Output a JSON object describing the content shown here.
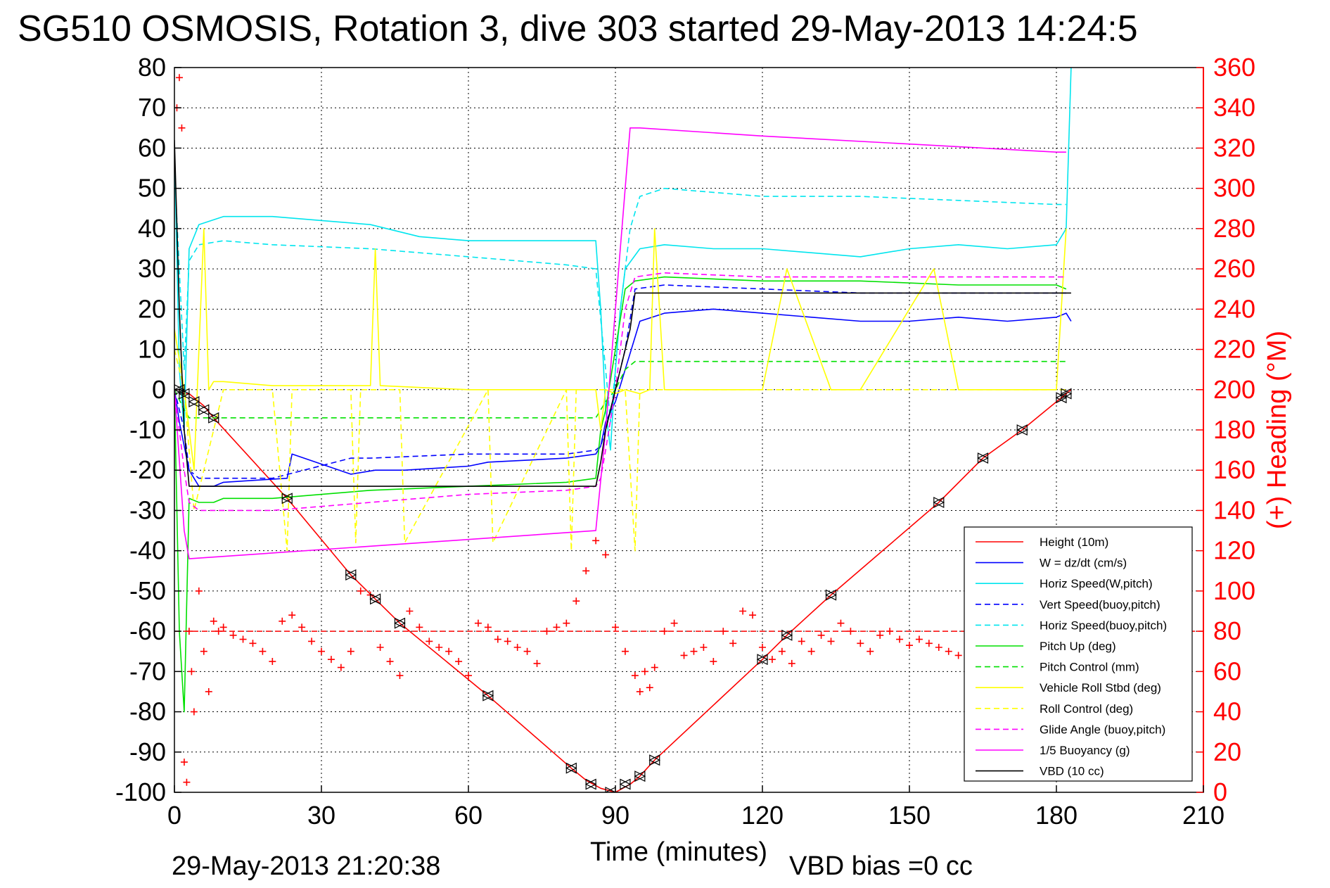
{
  "chart_data": {
    "type": "line",
    "title": "SG510 OSMOSIS, Rotation 3, dive 303 started 29-May-2013 14:24:5",
    "xlabel": "Time (minutes)",
    "ylabel_right": "(+) Heading (°M)",
    "xlim": [
      0,
      210
    ],
    "ylim": [
      -100,
      80
    ],
    "ylim_right": [
      0,
      360
    ],
    "x_ticks": [
      0,
      30,
      60,
      90,
      120,
      150,
      180,
      210
    ],
    "x_tick_labels": [
      "0",
      "30",
      "60",
      "90",
      "120",
      "150",
      "180",
      "210"
    ],
    "y_ticks": [
      80,
      70,
      60,
      50,
      40,
      30,
      20,
      10,
      0,
      -10,
      -20,
      -30,
      -40,
      -50,
      -60,
      -70,
      -80,
      -90,
      -100
    ],
    "y_tick_labels": [
      "80",
      "70",
      "60",
      "50",
      "40",
      "30",
      "20",
      "10",
      "0",
      "-10",
      "-20",
      "-30",
      "-40",
      "-50",
      "-60",
      "-70",
      "-80",
      "-90",
      "-100"
    ],
    "y_right_ticks": [
      360,
      340,
      320,
      300,
      280,
      260,
      240,
      220,
      200,
      180,
      160,
      140,
      120,
      100,
      80,
      60,
      40,
      20,
      0
    ],
    "y_right_tick_labels": [
      "360",
      "340",
      "320",
      "300",
      "280",
      "260",
      "240",
      "220",
      "200",
      "180",
      "160",
      "140",
      "120",
      "100",
      "80",
      "60",
      "40",
      "20",
      "0"
    ],
    "grid": true,
    "legend_position": "bottom-right",
    "footer_left": "29-May-2013 21:20:38",
    "footer_right": "VBD bias =0 cc",
    "series": [
      {
        "name": "Height (10m)",
        "color": "#ff0000",
        "style": "solid",
        "x": [
          0,
          1,
          2,
          3,
          4,
          6,
          8,
          23,
          36,
          41,
          46,
          64,
          81,
          84,
          87,
          90,
          93,
          95,
          98,
          120,
          125,
          134,
          156,
          165,
          173,
          181,
          182,
          183
        ],
        "y": [
          0,
          0,
          -1,
          -1,
          -2,
          -4,
          -7,
          -27,
          -46,
          -52,
          -58,
          -76,
          -94,
          -97,
          -99,
          -100,
          -98,
          -96,
          -92,
          -67,
          -61,
          -51,
          -28,
          -17,
          -10,
          -2,
          -1,
          0
        ]
      },
      {
        "name": "W = dz/dt (cm/s)",
        "color": "#0000ff",
        "style": "solid",
        "x": [
          0,
          1,
          2,
          3,
          5,
          8,
          10,
          23,
          24,
          36,
          41,
          47,
          60,
          64,
          80,
          86,
          87,
          88,
          90,
          92,
          95,
          100,
          110,
          120,
          130,
          140,
          150,
          160,
          170,
          180,
          182,
          183
        ],
        "y": [
          0,
          -8,
          -14,
          -20,
          -24,
          -24,
          -23,
          -22,
          -16,
          -21,
          -20,
          -20,
          -19,
          -18,
          -17,
          -16,
          -14,
          -8,
          -3,
          5,
          17,
          19,
          20,
          19,
          18,
          17,
          17,
          18,
          17,
          18,
          19,
          17
        ]
      },
      {
        "name": "Horiz Speed(W,pitch)",
        "color": "#00e5ee",
        "style": "solid",
        "x": [
          0,
          1,
          2,
          3,
          5,
          10,
          20,
          30,
          40,
          50,
          60,
          70,
          80,
          86,
          87,
          88,
          89,
          90,
          91,
          92,
          95,
          100,
          110,
          120,
          130,
          140,
          150,
          160,
          170,
          180,
          182,
          183
        ],
        "y": [
          60,
          5,
          -10,
          35,
          41,
          43,
          43,
          42,
          41,
          38,
          37,
          37,
          37,
          37,
          20,
          -5,
          -15,
          5,
          20,
          30,
          35,
          36,
          35,
          35,
          34,
          33,
          35,
          36,
          35,
          36,
          40,
          80
        ]
      },
      {
        "name": "Vert Speed(buoy,pitch)",
        "color": "#0000ff",
        "style": "dashed",
        "x": [
          0,
          2,
          3,
          5,
          10,
          20,
          36,
          40,
          60,
          80,
          86,
          87,
          88,
          90,
          92,
          94,
          100,
          120,
          140,
          160,
          180,
          182
        ],
        "y": [
          0,
          -10,
          -20,
          -22,
          -22,
          -22,
          -17,
          -17,
          -16,
          -16,
          -15,
          -14,
          -10,
          0,
          10,
          25,
          26,
          25,
          24,
          24,
          24,
          24
        ]
      },
      {
        "name": "Horiz Speed(buoy,pitch)",
        "color": "#00e5ee",
        "style": "dashed",
        "x": [
          0,
          2,
          3,
          5,
          10,
          20,
          40,
          60,
          80,
          86,
          88,
          89,
          90,
          91,
          93,
          95,
          100,
          110,
          120,
          140,
          160,
          180,
          182
        ],
        "y": [
          55,
          5,
          32,
          36,
          37,
          36,
          35,
          33,
          31,
          30,
          5,
          -8,
          5,
          20,
          40,
          48,
          50,
          49,
          48,
          48,
          47,
          46,
          46
        ]
      },
      {
        "name": "Pitch Up (deg)",
        "color": "#00e000",
        "style": "solid",
        "x": [
          0,
          1,
          2,
          3,
          5,
          8,
          10,
          20,
          30,
          40,
          60,
          80,
          86,
          87,
          88,
          90,
          92,
          94,
          100,
          120,
          140,
          160,
          180,
          182
        ],
        "y": [
          0,
          -60,
          -80,
          -27,
          -28,
          -28,
          -27,
          -27,
          -26,
          -25,
          -24,
          -23,
          -22,
          -10,
          -5,
          10,
          25,
          27,
          28,
          27,
          27,
          26,
          26,
          25
        ]
      },
      {
        "name": "Pitch Control (mm)",
        "color": "#00e000",
        "style": "dashed",
        "x": [
          0,
          2,
          3,
          86,
          87,
          88,
          90,
          92,
          93,
          94,
          120,
          150,
          182
        ],
        "y": [
          0,
          -5,
          -7,
          -7,
          -5,
          -3,
          0,
          5,
          6,
          7,
          7,
          7,
          7
        ]
      },
      {
        "name": "Vehicle Roll Stbd (deg)",
        "color": "#ffff00",
        "style": "solid",
        "x": [
          0,
          2,
          4,
          6,
          7,
          8,
          10,
          20,
          40,
          41,
          42,
          60,
          80,
          86,
          87,
          88,
          90,
          92,
          95,
          97,
          98,
          100,
          120,
          125,
          134,
          140,
          155,
          160,
          180,
          182
        ],
        "y": [
          15,
          0,
          -20,
          40,
          0,
          2,
          2,
          1,
          1,
          35,
          1,
          0,
          0,
          0,
          -10,
          0,
          -1,
          0,
          -1,
          0,
          40,
          0,
          0,
          30,
          0,
          0,
          30,
          0,
          0,
          40
        ]
      },
      {
        "name": "Roll Control (deg)",
        "color": "#ffff00",
        "style": "dashed",
        "x": [
          0,
          2,
          4,
          10,
          20,
          23,
          24,
          36,
          37,
          38,
          46,
          47,
          64,
          65,
          80,
          81,
          82,
          86,
          88,
          90,
          92,
          94,
          95,
          96,
          120,
          180,
          182
        ],
        "y": [
          10,
          0,
          -30,
          0,
          0,
          -40,
          0,
          0,
          -38,
          0,
          0,
          -38,
          0,
          -38,
          0,
          -40,
          0,
          0,
          0,
          0,
          0,
          -40,
          0,
          0,
          0,
          0,
          0
        ]
      },
      {
        "name": "Glide Angle (buoy,pitch)",
        "color": "#ff00ff",
        "style": "dashed",
        "x": [
          0,
          2,
          3,
          5,
          10,
          20,
          30,
          40,
          60,
          80,
          86,
          87,
          88,
          90,
          92,
          94,
          100,
          120,
          140,
          160,
          180,
          182
        ],
        "y": [
          0,
          -20,
          -28,
          -30,
          -30,
          -30,
          -29,
          -28,
          -26,
          -25,
          -24,
          -22,
          -15,
          0,
          20,
          28,
          29,
          28,
          28,
          28,
          28,
          28
        ]
      },
      {
        "name": "1/5 Buoyancy (g)",
        "color": "#ff00ff",
        "style": "solid",
        "x": [
          0,
          2,
          3,
          86,
          88,
          90,
          92,
          93,
          95,
          120,
          150,
          180,
          182
        ],
        "y": [
          0,
          -35,
          -42,
          -35,
          -10,
          20,
          50,
          65,
          65,
          63,
          61,
          59,
          59
        ]
      },
      {
        "name": "VBD (10 cc)",
        "color": "#000000",
        "style": "solid",
        "x": [
          0,
          1,
          2,
          3,
          86,
          87,
          88,
          89,
          90,
          91,
          93,
          94,
          182,
          183
        ],
        "y": [
          62,
          20,
          -10,
          -24,
          -24,
          -18,
          -10,
          -5,
          0,
          5,
          15,
          24,
          24,
          24
        ]
      }
    ],
    "heading_series": {
      "name": "(+) Heading (°M)",
      "color": "#ff0000",
      "marker": "+",
      "x": [
        0.5,
        1,
        1.5,
        2,
        2.5,
        3,
        3.5,
        4,
        5,
        6,
        7,
        8,
        9,
        10,
        12,
        14,
        16,
        18,
        20,
        22,
        24,
        26,
        28,
        30,
        32,
        34,
        36,
        38,
        40,
        42,
        44,
        46,
        48,
        50,
        52,
        54,
        56,
        58,
        60,
        62,
        64,
        66,
        68,
        70,
        72,
        74,
        76,
        78,
        80,
        82,
        84,
        86,
        88,
        90,
        92,
        94,
        95,
        96,
        97,
        98,
        100,
        102,
        104,
        106,
        108,
        110,
        112,
        114,
        116,
        118,
        120,
        122,
        124,
        126,
        128,
        130,
        132,
        134,
        136,
        138,
        140,
        142,
        144,
        146,
        148,
        150,
        152,
        154,
        156,
        158,
        160,
        162,
        164,
        166,
        168,
        170,
        172,
        174,
        176,
        178,
        180,
        182
      ],
      "y": [
        340,
        355,
        330,
        15,
        5,
        80,
        60,
        40,
        100,
        70,
        50,
        85,
        80,
        82,
        78,
        76,
        74,
        70,
        65,
        85,
        88,
        82,
        75,
        70,
        66,
        62,
        70,
        100,
        98,
        72,
        65,
        58,
        90,
        82,
        75,
        72,
        70,
        65,
        58,
        84,
        82,
        76,
        75,
        72,
        70,
        64,
        80,
        82,
        84,
        95,
        110,
        125,
        118,
        82,
        70,
        58,
        50,
        60,
        52,
        62,
        80,
        84,
        68,
        70,
        72,
        65,
        80,
        74,
        90,
        88,
        72,
        66,
        70,
        64,
        75,
        70,
        78,
        75,
        84,
        80,
        74,
        70,
        78,
        80,
        76,
        73,
        76,
        74,
        72,
        70,
        68,
        64,
        72,
        70,
        76,
        74,
        72,
        70,
        64,
        60,
        76,
        70
      ]
    },
    "heading_reference": {
      "value": 80,
      "color": "#ff0000",
      "style": "dashed"
    },
    "waypoint_markers": {
      "x": [
        1,
        2,
        4,
        6,
        8,
        23,
        36,
        41,
        46,
        64,
        81,
        85,
        89,
        92,
        95,
        98,
        120,
        125,
        134,
        156,
        165,
        173,
        181,
        182
      ],
      "y": [
        0,
        -1,
        -3,
        -5,
        -7,
        -27,
        -46,
        -52,
        -58,
        -76,
        -94,
        -98,
        -100,
        -98,
        -96,
        -92,
        -67,
        -61,
        -51,
        -28,
        -17,
        -10,
        -2,
        -1
      ]
    }
  }
}
